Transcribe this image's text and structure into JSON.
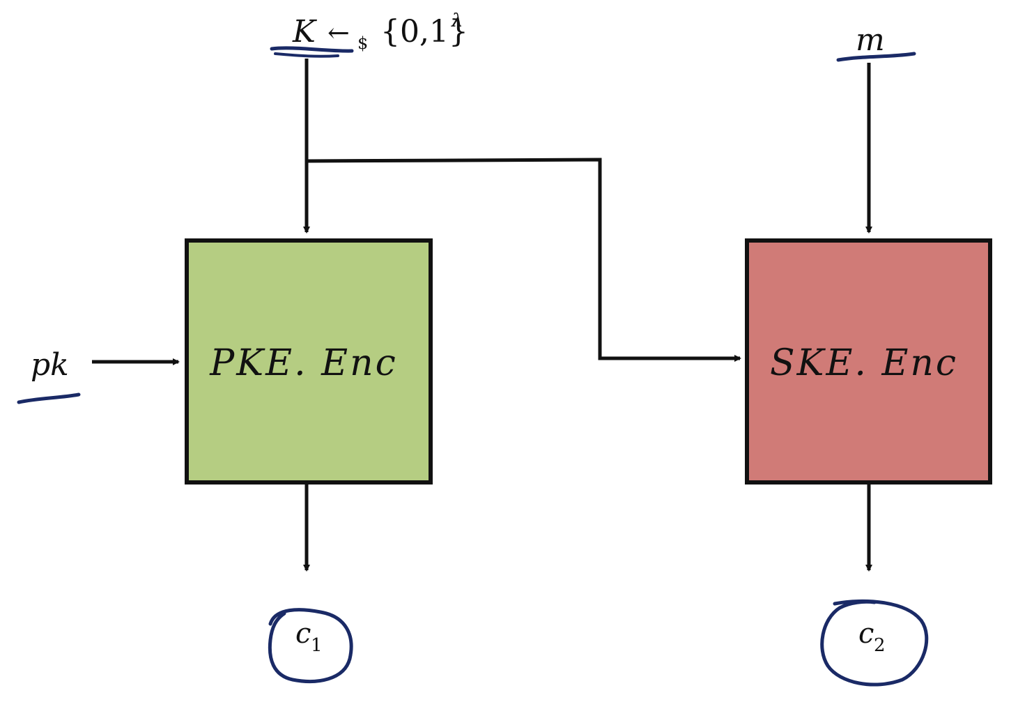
{
  "diagram": {
    "key_sample": {
      "var": "K",
      "arrow": "←",
      "subscript": "$",
      "set": "{0,1}",
      "superscript": "λ"
    },
    "message_input": "m",
    "public_key_input": "pk",
    "pke_box": {
      "label": "PKE. Enc",
      "fill": "#b5cd82"
    },
    "ske_box": {
      "label": "SKE. Enc",
      "fill": "#d07b77"
    },
    "outputs": [
      {
        "base": "c",
        "sub": "1"
      },
      {
        "base": "c",
        "sub": "2"
      }
    ],
    "colors": {
      "wire": "#111111",
      "annotation_ink": "#1a2a66"
    }
  }
}
